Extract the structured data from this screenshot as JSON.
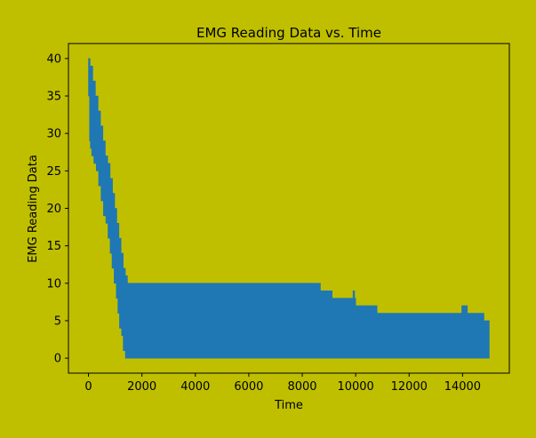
{
  "chart_data": {
    "type": "area",
    "title": "EMG Reading Data vs. Time",
    "xlabel": "Time",
    "ylabel": "EMG Reading Data",
    "xlim": [
      -750,
      15750
    ],
    "ylim": [
      -2,
      42
    ],
    "xticks": [
      0,
      2000,
      4000,
      6000,
      8000,
      10000,
      12000,
      14000
    ],
    "yticks": [
      0,
      5,
      10,
      15,
      20,
      25,
      30,
      35,
      40
    ],
    "grid": false,
    "legend": "none",
    "colors": {
      "series": "#1f77b4",
      "plot_background": "#bfbf00",
      "figure_background": "#bfbf00",
      "axes": "#000000"
    },
    "series": [
      {
        "upper_envelope": [
          [
            0,
            40
          ],
          [
            60,
            40
          ],
          [
            60,
            39
          ],
          [
            160,
            39
          ],
          [
            160,
            37
          ],
          [
            260,
            37
          ],
          [
            260,
            35
          ],
          [
            360,
            35
          ],
          [
            360,
            33
          ],
          [
            450,
            33
          ],
          [
            450,
            31
          ],
          [
            540,
            31
          ],
          [
            540,
            29
          ],
          [
            630,
            29
          ],
          [
            630,
            27
          ],
          [
            720,
            27
          ],
          [
            720,
            26
          ],
          [
            810,
            26
          ],
          [
            810,
            24
          ],
          [
            900,
            24
          ],
          [
            900,
            22
          ],
          [
            980,
            22
          ],
          [
            980,
            20
          ],
          [
            1060,
            20
          ],
          [
            1060,
            18
          ],
          [
            1140,
            18
          ],
          [
            1140,
            16
          ],
          [
            1220,
            16
          ],
          [
            1220,
            14
          ],
          [
            1300,
            14
          ],
          [
            1300,
            12
          ],
          [
            1380,
            12
          ],
          [
            1380,
            11
          ],
          [
            1460,
            11
          ],
          [
            1460,
            10
          ],
          [
            8680,
            10
          ],
          [
            8680,
            9
          ],
          [
            9120,
            9
          ],
          [
            9120,
            8
          ],
          [
            9900,
            8
          ],
          [
            9900,
            9
          ],
          [
            9960,
            9
          ],
          [
            9960,
            8
          ],
          [
            10000,
            8
          ],
          [
            10000,
            7
          ],
          [
            10800,
            7
          ],
          [
            10800,
            6
          ],
          [
            13970,
            6
          ],
          [
            13970,
            7
          ],
          [
            14180,
            7
          ],
          [
            14180,
            6
          ],
          [
            14800,
            6
          ],
          [
            14800,
            5
          ],
          [
            15000,
            5
          ]
        ],
        "lower_envelope": [
          [
            0,
            35
          ],
          [
            40,
            35
          ],
          [
            40,
            29
          ],
          [
            70,
            29
          ],
          [
            70,
            28
          ],
          [
            120,
            28
          ],
          [
            120,
            27
          ],
          [
            200,
            27
          ],
          [
            200,
            26
          ],
          [
            290,
            26
          ],
          [
            290,
            25
          ],
          [
            380,
            25
          ],
          [
            380,
            23
          ],
          [
            470,
            23
          ],
          [
            470,
            21
          ],
          [
            560,
            21
          ],
          [
            560,
            19
          ],
          [
            650,
            19
          ],
          [
            650,
            18
          ],
          [
            730,
            18
          ],
          [
            730,
            16
          ],
          [
            810,
            16
          ],
          [
            810,
            14
          ],
          [
            880,
            14
          ],
          [
            880,
            12
          ],
          [
            960,
            12
          ],
          [
            960,
            10
          ],
          [
            1040,
            10
          ],
          [
            1040,
            8
          ],
          [
            1100,
            8
          ],
          [
            1100,
            6
          ],
          [
            1160,
            6
          ],
          [
            1160,
            4
          ],
          [
            1240,
            4
          ],
          [
            1240,
            3
          ],
          [
            1300,
            3
          ],
          [
            1300,
            1
          ],
          [
            1380,
            1
          ],
          [
            1380,
            0
          ],
          [
            15000,
            0
          ]
        ]
      }
    ]
  }
}
